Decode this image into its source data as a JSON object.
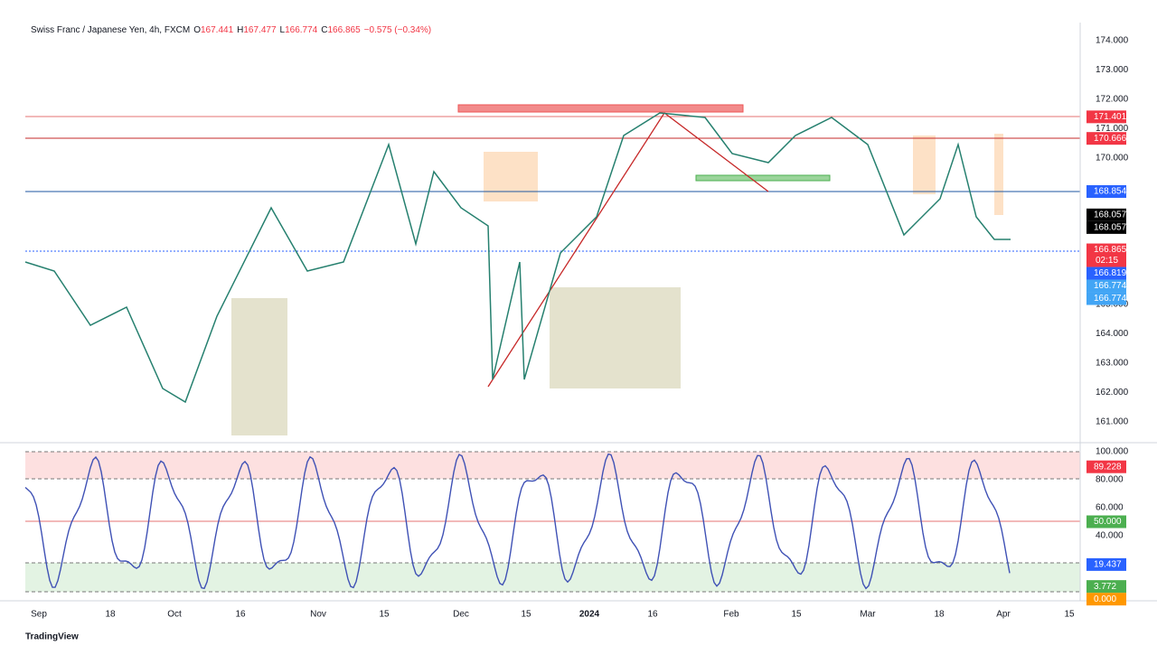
{
  "header": {
    "symbol": "Swiss Franc / Japanese Yen, 4h, FXCM",
    "open_label": "O",
    "open": "167.441",
    "high_label": "H",
    "high": "167.477",
    "low_label": "L",
    "low": "166.774",
    "close_label": "C",
    "close": "166.865",
    "change": "−0.575 (−0.34%)"
  },
  "price_axis": {
    "labels": [
      "174.000",
      "173.000",
      "172.000",
      "171.000",
      "170.000",
      "165.000",
      "164.000",
      "163.000",
      "162.000",
      "161.000"
    ]
  },
  "price_badges": [
    {
      "text": "171.401",
      "color": "#f23645"
    },
    {
      "text": "170.666",
      "color": "#f23645"
    },
    {
      "text": "168.854",
      "color": "#2962ff"
    },
    {
      "text": "168.057",
      "color": "#000000"
    },
    {
      "text": "168.057",
      "color": "#000000"
    },
    {
      "text": "166.865",
      "color": "#f23645",
      "sub": "02:15"
    },
    {
      "text": "166.819",
      "color": "#2962ff"
    },
    {
      "text": "166.774",
      "color": "#42a5f5"
    },
    {
      "text": "166.774",
      "color": "#42a5f5"
    }
  ],
  "osc_axis": {
    "labels": [
      "100.000",
      "80.000",
      "60.000",
      "40.000"
    ]
  },
  "osc_badges": [
    {
      "text": "89.228",
      "color": "#f23645"
    },
    {
      "text": "50.000",
      "color": "#4caf50"
    },
    {
      "text": "19.437",
      "color": "#2962ff"
    },
    {
      "text": "3.772",
      "color": "#4caf50"
    },
    {
      "text": "0.000",
      "color": "#ff9800"
    }
  ],
  "time_axis": {
    "labels": [
      "Sep",
      "18",
      "Oct",
      "16",
      "Nov",
      "15",
      "Dec",
      "15",
      "2024",
      "16",
      "Feb",
      "15",
      "Mar",
      "18",
      "Apr",
      "15"
    ]
  },
  "footer": {
    "brand": "TradingView"
  }
}
